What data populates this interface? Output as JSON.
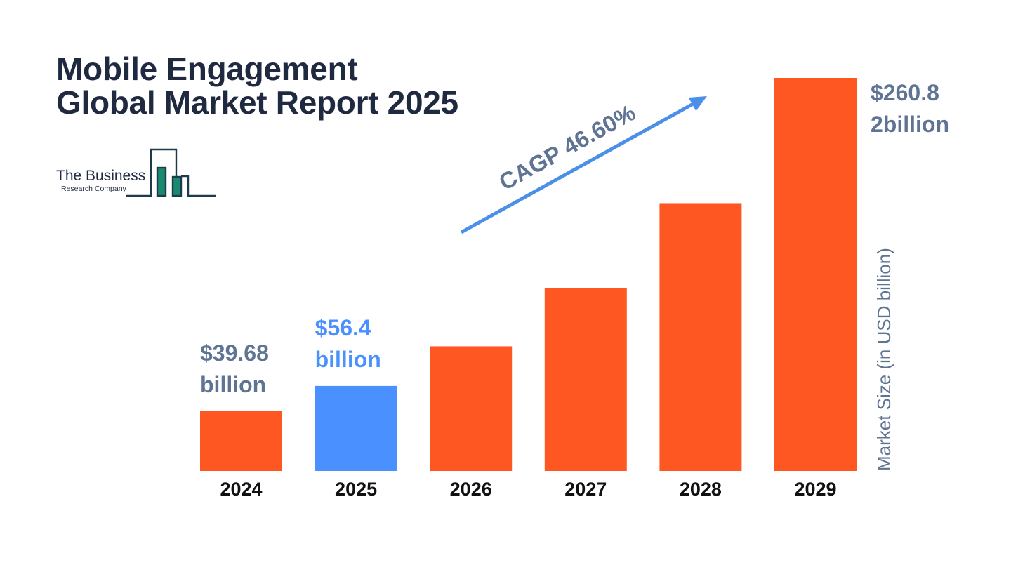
{
  "title": {
    "line1": "Mobile Engagement",
    "line2": "Global Market Report 2025"
  },
  "logo": {
    "name": "The Business",
    "subtitle": "Research Company",
    "color": "#1a8a6e"
  },
  "chart_data": {
    "type": "bar",
    "title": "Mobile Engagement Global Market Report 2025",
    "categories": [
      "2024",
      "2025",
      "2026",
      "2027",
      "2028",
      "2029"
    ],
    "values": [
      39.68,
      56.4,
      82.7,
      121.2,
      177.7,
      260.82
    ],
    "bar_colors": [
      "#ff5722",
      "#4a90ff",
      "#ff5722",
      "#ff5722",
      "#ff5722",
      "#ff5722"
    ],
    "ylabel": "Market Size (in USD billion)",
    "xlabel": "",
    "ylim": [
      0,
      260.82
    ],
    "grid": false,
    "annotations": [
      {
        "category": "2024",
        "line1": "$39.68",
        "line2": "billion",
        "color": "#5f7392"
      },
      {
        "category": "2025",
        "line1": "$56.4",
        "line2": "billion",
        "color": "#4a90ff"
      },
      {
        "category": "2029",
        "line1": "$260.8",
        "line2": "2billion",
        "color": "#5f7392"
      }
    ],
    "cagr": {
      "label": "CAGP 46.60%",
      "color": "#4a90e8",
      "label_color": "#5f7392"
    }
  }
}
